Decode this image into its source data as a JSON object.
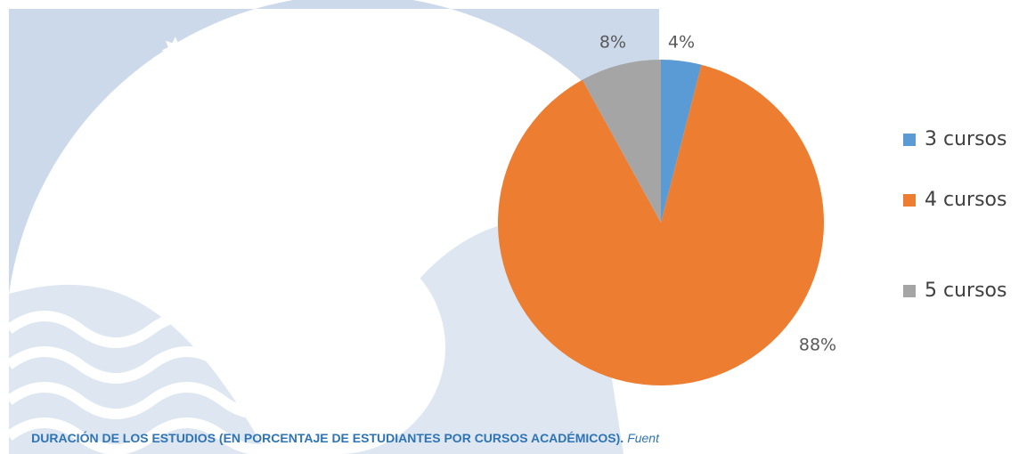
{
  "chart_data": {
    "type": "pie",
    "categories": [
      "3 cursos",
      "4 cursos",
      "5 cursos"
    ],
    "values": [
      4,
      88,
      8
    ],
    "value_labels": [
      "4%",
      "88%",
      "8%"
    ],
    "colors": [
      "#5b9bd5",
      "#ed7d31",
      "#a5a5a5"
    ],
    "legend": "right",
    "caption": "DURACIÓN DE LOS ESTUDIOS (EN PORCENTAJE DE ESTUDIANTES POR CURSOS ACADÉMICOS).",
    "source": "Fuent"
  }
}
